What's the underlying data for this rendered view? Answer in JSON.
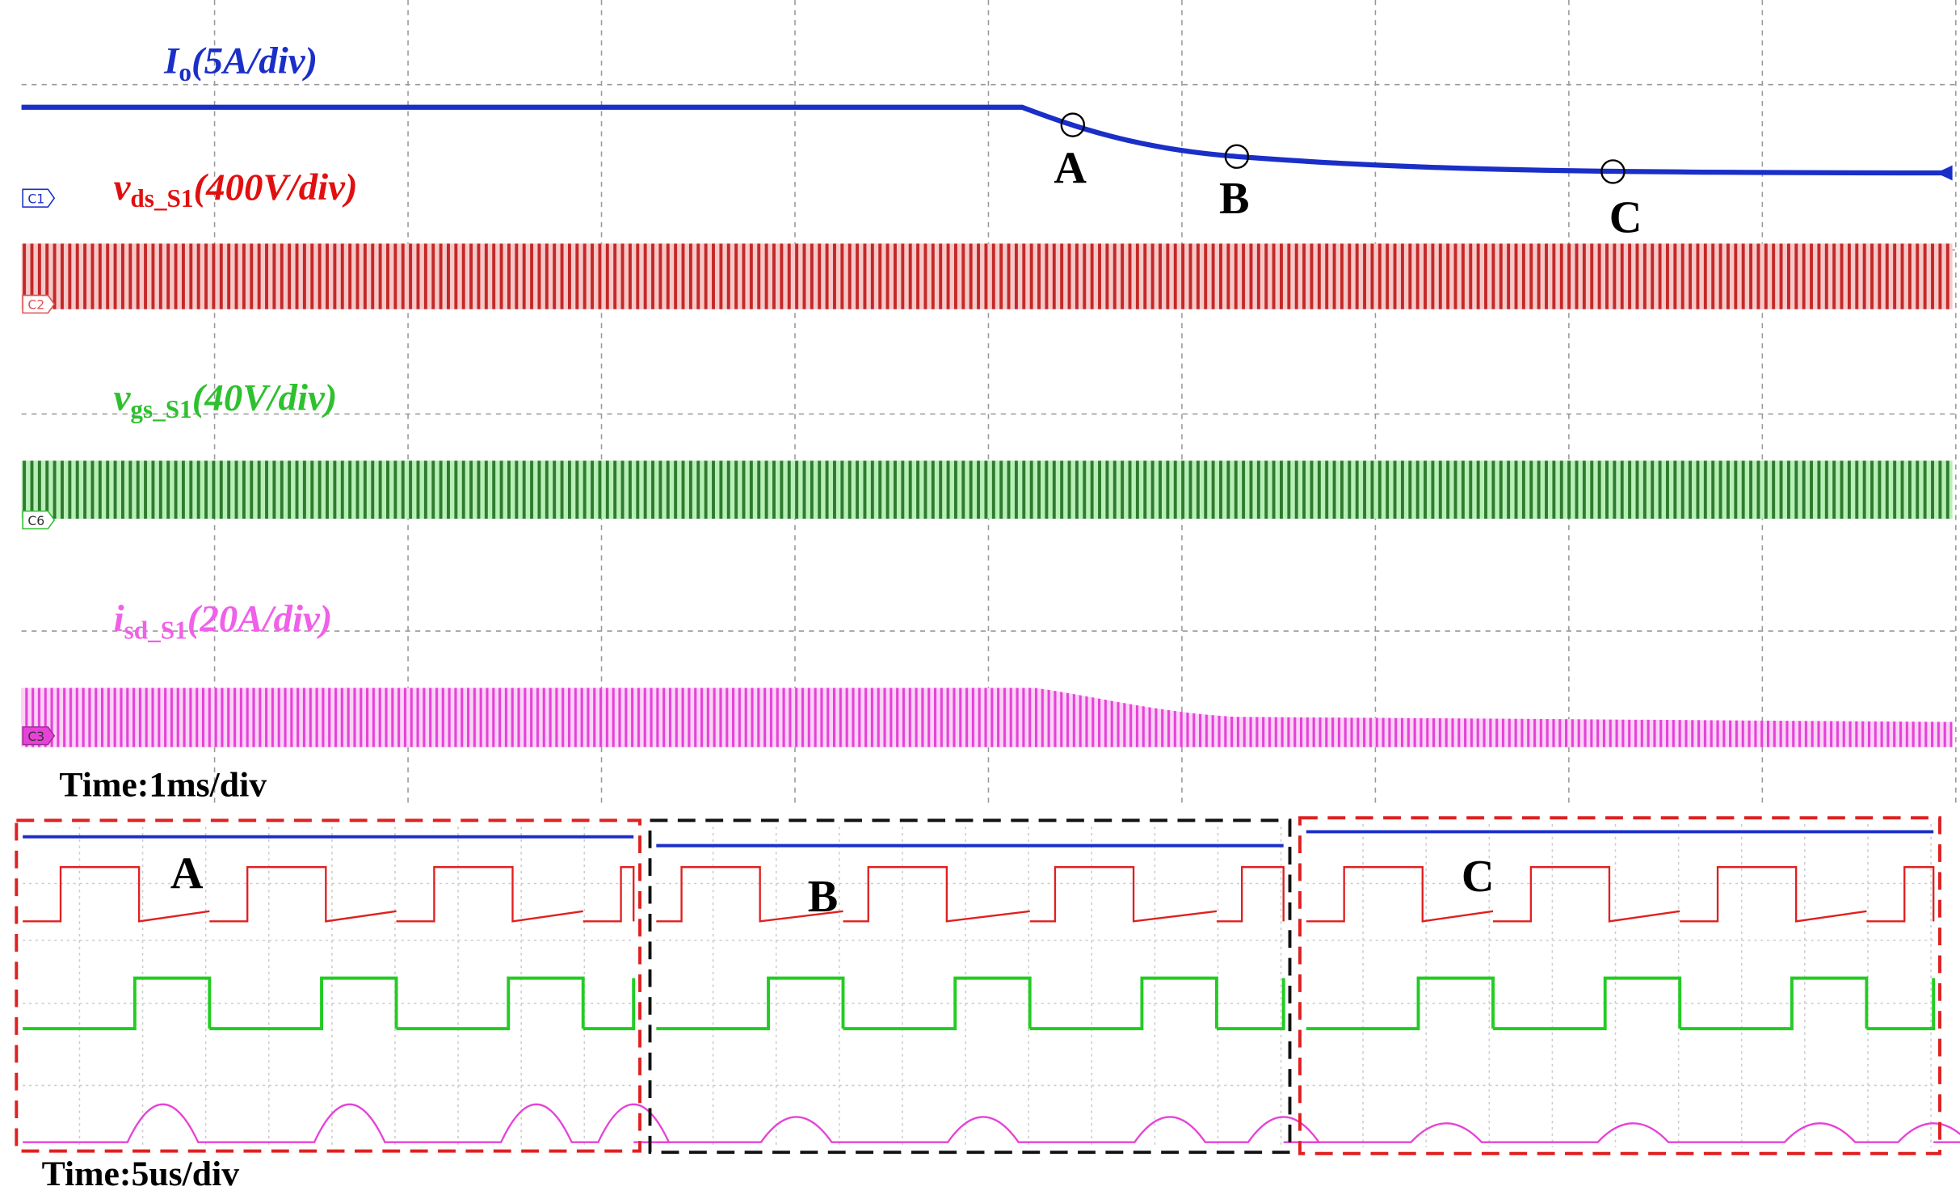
{
  "top_panel": {
    "channels": [
      {
        "symbol": "I",
        "subscript": "o",
        "scale": "(5A/div)",
        "marker": "C1"
      },
      {
        "symbol": "v",
        "subscript": "ds_S1",
        "scale": "(400V/div)",
        "marker": "C2"
      },
      {
        "symbol": "v",
        "subscript": "gs_S1",
        "scale": "(40V/div)",
        "marker": "C6"
      },
      {
        "symbol": "i",
        "subscript": "sd_S1",
        "scale": "(20A/div)",
        "marker": "C3"
      }
    ],
    "points": [
      "A",
      "B",
      "C"
    ],
    "time_scale": "Time:1ms/div"
  },
  "zoom_panels": {
    "labels": [
      "A",
      "B",
      "C"
    ],
    "time_scale": "Time:5us/div"
  }
}
